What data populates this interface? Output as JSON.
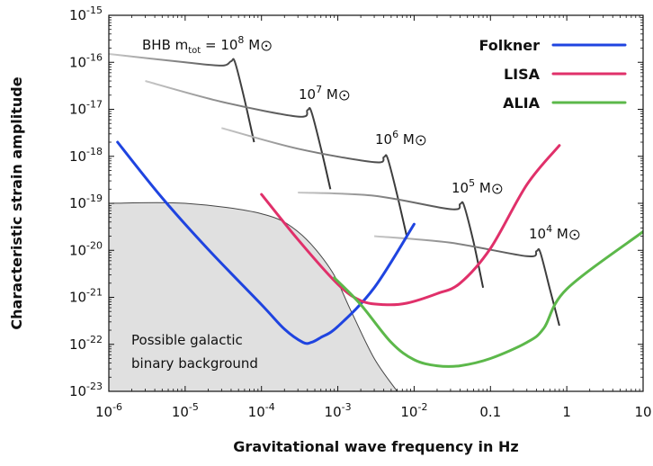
{
  "chart_data": {
    "type": "line",
    "xlabel": "Gravitational wave frequency in Hz",
    "ylabel": "Characteristic strain amplitude",
    "x_scale": "log",
    "y_scale": "log",
    "xlim": [
      1e-06,
      10
    ],
    "ylim": [
      1e-23,
      1e-15
    ],
    "grid": false,
    "legend_position": "top-right",
    "x_ticks": [
      {
        "value": 1e-06,
        "base": "10",
        "exp": "-6"
      },
      {
        "value": 1e-05,
        "base": "10",
        "exp": "-5"
      },
      {
        "value": 0.0001,
        "base": "10",
        "exp": "-4"
      },
      {
        "value": 0.001,
        "base": "10",
        "exp": "-3"
      },
      {
        "value": 0.01,
        "base": "10",
        "exp": "-2"
      },
      {
        "value": 0.1,
        "base": "0.1",
        "exp": ""
      },
      {
        "value": 1,
        "base": "1",
        "exp": ""
      },
      {
        "value": 10,
        "base": "10",
        "exp": ""
      }
    ],
    "y_ticks": [
      {
        "value": 1e-15,
        "base": "10",
        "exp": "-15"
      },
      {
        "value": 1e-16,
        "base": "10",
        "exp": "-16"
      },
      {
        "value": 1e-17,
        "base": "10",
        "exp": "-17"
      },
      {
        "value": 1e-18,
        "base": "10",
        "exp": "-18"
      },
      {
        "value": 1e-19,
        "base": "10",
        "exp": "-19"
      },
      {
        "value": 1e-20,
        "base": "10",
        "exp": "-20"
      },
      {
        "value": 1e-21,
        "base": "10",
        "exp": "-21"
      },
      {
        "value": 1e-22,
        "base": "10",
        "exp": "-22"
      },
      {
        "value": 1e-23,
        "base": "10",
        "exp": "-23"
      }
    ],
    "series": [
      {
        "name": "Folkner",
        "color": "#1f44e0",
        "points": [
          [
            1.3e-06,
            2e-18
          ],
          [
            5e-06,
            1.3e-19
          ],
          [
            2e-05,
            1.05e-20
          ],
          [
            0.0001,
            7e-22
          ],
          [
            0.0002,
            2.1e-22
          ],
          [
            0.00035,
            1.1e-22
          ],
          [
            0.00045,
            1.1e-22
          ],
          [
            0.0006,
            1.4e-22
          ],
          [
            0.001,
            2.4e-22
          ],
          [
            0.003,
            1.6e-21
          ],
          [
            0.01,
            3.6e-20
          ]
        ]
      },
      {
        "name": "LISA",
        "color": "#e0306a",
        "points": [
          [
            0.0001,
            1.55e-19
          ],
          [
            0.0003,
            1.7e-20
          ],
          [
            0.001,
            1.9e-21
          ],
          [
            0.002,
            8.5e-22
          ],
          [
            0.004,
            7e-22
          ],
          [
            0.008,
            7.5e-22
          ],
          [
            0.02,
            1.2e-21
          ],
          [
            0.04,
            2e-21
          ],
          [
            0.1,
            1.1e-20
          ],
          [
            0.3,
            2.5e-19
          ],
          [
            0.8,
            1.7e-18
          ]
        ]
      },
      {
        "name": "ALIA",
        "color": "#5cb84a",
        "points": [
          [
            0.0009,
            2.6e-21
          ],
          [
            0.002,
            7e-22
          ],
          [
            0.005,
            1.1e-22
          ],
          [
            0.01,
            4.7e-23
          ],
          [
            0.02,
            3.5e-23
          ],
          [
            0.04,
            3.5e-23
          ],
          [
            0.1,
            5e-23
          ],
          [
            0.3,
            1.1e-22
          ],
          [
            0.5,
            2.2e-22
          ],
          [
            1,
            1.5e-21
          ],
          [
            10,
            2.5e-20
          ]
        ]
      }
    ],
    "bhb_tracks": [
      {
        "label_base": "BHB m",
        "label_sub": "tot",
        "label_eq": " = 10",
        "label_exp": "8",
        "label_unit": " M",
        "points": [
          [
            1e-06,
            1.5e-16
          ],
          [
            1e-05,
            1e-16
          ],
          [
            3e-05,
            8.5e-17
          ],
          [
            4e-05,
            1.05e-16
          ],
          [
            4.5e-05,
            1e-16
          ],
          [
            6e-05,
            1.6e-17
          ],
          [
            8e-05,
            2e-18
          ]
        ]
      },
      {
        "label_base": "",
        "label_sub": "",
        "label_eq": "10",
        "label_exp": "7",
        "label_unit": " M",
        "points": [
          [
            3e-06,
            4e-17
          ],
          [
            3e-05,
            1.45e-17
          ],
          [
            0.0003,
            7e-18
          ],
          [
            0.0004,
            9.6e-18
          ],
          [
            0.00045,
            9e-18
          ],
          [
            0.0006,
            1.5e-18
          ],
          [
            0.0008,
            2e-19
          ]
        ]
      },
      {
        "label_base": "",
        "label_sub": "",
        "label_eq": "10",
        "label_exp": "6",
        "label_unit": " M",
        "points": [
          [
            3e-05,
            4e-18
          ],
          [
            0.0003,
            1.45e-18
          ],
          [
            0.003,
            7.5e-19
          ],
          [
            0.004,
            9.6e-19
          ],
          [
            0.0045,
            9e-19
          ],
          [
            0.006,
            1.5e-19
          ],
          [
            0.008,
            2e-20
          ]
        ]
      },
      {
        "label_base": "",
        "label_sub": "",
        "label_eq": "10",
        "label_exp": "5",
        "label_unit": " M",
        "points": [
          [
            0.0003,
            1.7e-19
          ],
          [
            0.003,
            1.45e-19
          ],
          [
            0.03,
            7.5e-20
          ],
          [
            0.04,
            9.6e-20
          ],
          [
            0.045,
            9e-20
          ],
          [
            0.06,
            1.5e-20
          ],
          [
            0.08,
            1.6e-21
          ]
        ]
      },
      {
        "label_base": "",
        "label_sub": "",
        "label_eq": "10",
        "label_exp": "4",
        "label_unit": " M",
        "points": [
          [
            0.003,
            2e-20
          ],
          [
            0.03,
            1.45e-20
          ],
          [
            0.3,
            7.5e-21
          ],
          [
            0.4,
            9.6e-21
          ],
          [
            0.45,
            9e-21
          ],
          [
            0.6,
            1.5e-21
          ],
          [
            0.8,
            2.5e-22
          ]
        ]
      }
    ],
    "shaded_region": {
      "label_line1": "Possible galactic",
      "label_line2": "binary background",
      "fill": "#e0e0e0",
      "points": [
        [
          1e-06,
          1e-19
        ],
        [
          1e-05,
          1e-19
        ],
        [
          0.0001,
          6e-20
        ],
        [
          0.0003,
          2.5e-20
        ],
        [
          0.0008,
          4e-21
        ],
        [
          0.0015,
          5e-22
        ],
        [
          0.003,
          5e-23
        ],
        [
          0.006,
          1e-23
        ]
      ]
    }
  }
}
